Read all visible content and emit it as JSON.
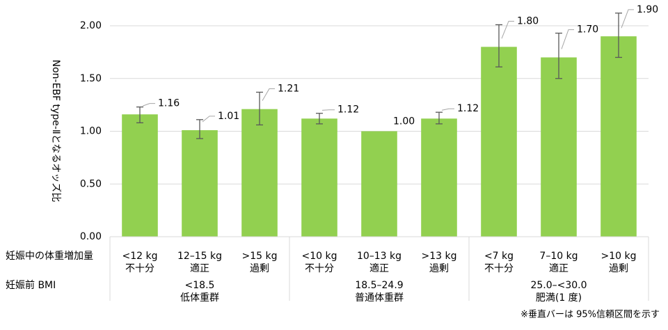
{
  "chart_data": {
    "type": "bar",
    "y_label": "Non-EBF type-Ⅱとなるオッズ比",
    "row_headers": [
      "妊娠中の体重増加量",
      "妊娠前 BMI"
    ],
    "categories": [
      [
        "<12 kg",
        "不十分"
      ],
      [
        "12–15 kg",
        "適正"
      ],
      [
        ">15 kg",
        "過剰"
      ],
      [
        "<10 kg",
        "不十分"
      ],
      [
        "10–13 kg",
        "適正"
      ],
      [
        ">13 kg",
        "過剰"
      ],
      [
        "<7 kg",
        "不十分"
      ],
      [
        "7–10 kg",
        "適正"
      ],
      [
        ">10 kg",
        "過剰"
      ]
    ],
    "groups": [
      {
        "label": [
          "<18.5",
          "低体重群"
        ],
        "size": 3
      },
      {
        "label": [
          "18.5–24.9",
          "普通体重群"
        ],
        "size": 3
      },
      {
        "label": [
          "25.0–<30.0",
          "肥満(1 度)"
        ],
        "size": 3
      }
    ],
    "series": [
      {
        "color": "#92d050",
        "values": [
          1.16,
          1.01,
          1.21,
          1.12,
          1.0,
          1.12,
          1.8,
          1.7,
          1.9
        ],
        "value_labels": [
          "1.16",
          "1.01",
          "1.21",
          "1.12",
          "1.00",
          "1.12",
          "1.80",
          "1.70",
          "1.90"
        ],
        "ci_low": [
          1.08,
          0.93,
          1.06,
          1.07,
          null,
          1.07,
          1.61,
          1.5,
          1.7
        ],
        "ci_high": [
          1.23,
          1.11,
          1.37,
          1.17,
          null,
          1.18,
          2.01,
          1.93,
          2.12
        ]
      }
    ],
    "ylim": [
      0,
      2.2
    ],
    "yticks": [
      {
        "value": 0,
        "label": "0.00"
      },
      {
        "value": 0.5,
        "label": "0.50"
      },
      {
        "value": 1,
        "label": "1.00"
      },
      {
        "value": 1.5,
        "label": "1.50"
      },
      {
        "value": 2,
        "label": "2.00"
      }
    ],
    "grid": true,
    "note": "※垂直バーは 95%信頼区間を示す"
  }
}
